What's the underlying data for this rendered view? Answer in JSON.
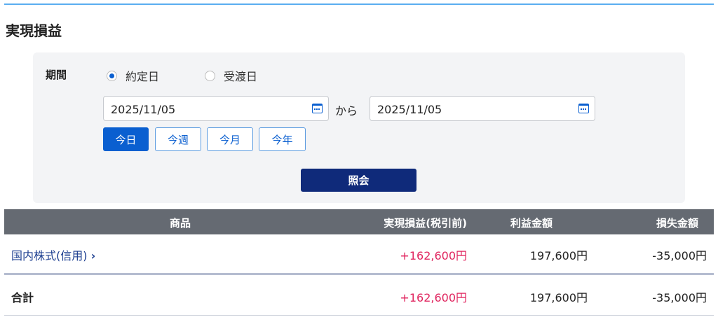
{
  "title": "実現損益",
  "filter": {
    "period_label": "期間",
    "radio": [
      {
        "label": "約定日",
        "checked": true
      },
      {
        "label": "受渡日",
        "checked": false
      }
    ],
    "date_from": "2025/11/05",
    "date_to": "2025/11/05",
    "from_sep": "から",
    "quick": [
      {
        "label": "今日",
        "active": true
      },
      {
        "label": "今週",
        "active": false
      },
      {
        "label": "今月",
        "active": false
      },
      {
        "label": "今年",
        "active": false
      }
    ],
    "search_label": "照会"
  },
  "table": {
    "headers": [
      "商品",
      "実現損益(税引前)",
      "利益金額",
      "損失金額"
    ],
    "rows": [
      {
        "product": "国内株式(信用)",
        "realized": "+162,600円",
        "profit": "197,600円",
        "loss": "-35,000円"
      }
    ],
    "total": {
      "label": "合計",
      "realized": "+162,600円",
      "profit": "197,600円",
      "loss": "-35,000円"
    }
  },
  "colors": {
    "accent": "#0a5fd0",
    "navy": "#0f2a7a",
    "positive": "#e0245e",
    "header_bg": "#656a72"
  }
}
